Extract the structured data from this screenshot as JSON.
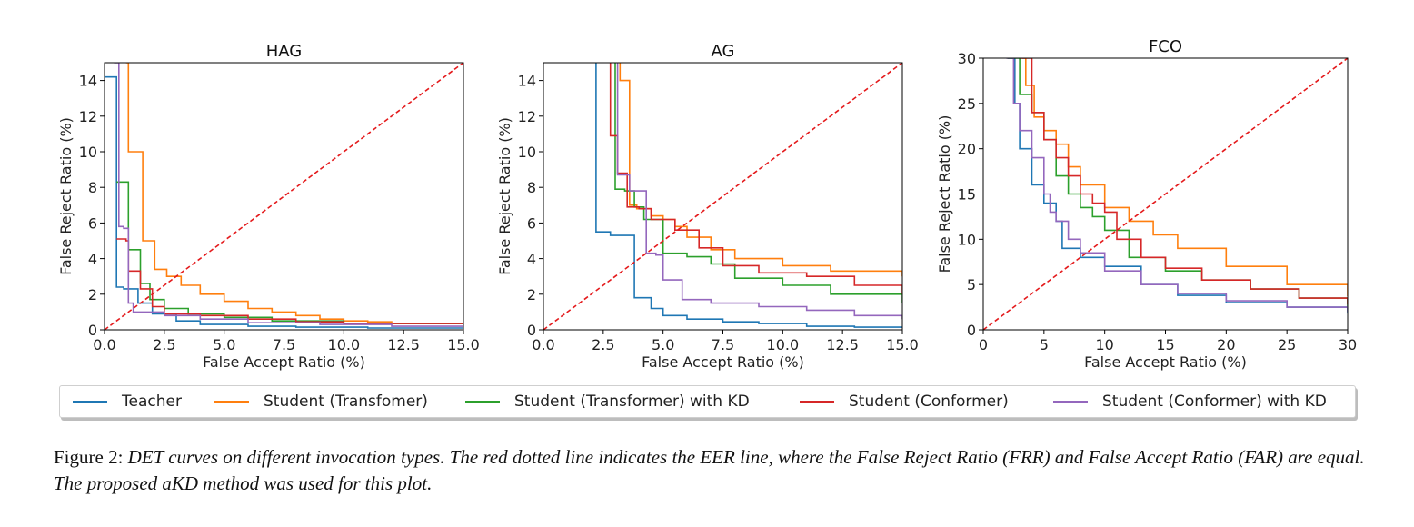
{
  "chart_data": [
    {
      "type": "line",
      "title": "HAG",
      "xlabel": "False Accept Ratio (%)",
      "ylabel": "False Reject Ratio (%)",
      "xlim": [
        0,
        15
      ],
      "ylim": [
        0,
        15
      ],
      "xticks": [
        "0.0",
        "2.5",
        "5.0",
        "7.5",
        "10.0",
        "12.5",
        "15.0"
      ],
      "yticks": [
        "0",
        "2",
        "4",
        "6",
        "8",
        "10",
        "12",
        "14"
      ],
      "xtick_values": [
        0,
        2.5,
        5,
        7.5,
        10,
        12.5,
        15
      ],
      "ytick_values": [
        0,
        2,
        4,
        6,
        8,
        10,
        12,
        14
      ],
      "eer_line": true,
      "series": [
        {
          "name": "Teacher",
          "x": [
            0,
            0.5,
            0.5,
            0.8,
            1.4,
            2.0,
            3.0,
            4.0,
            6.0,
            8.0,
            11.0,
            15.0
          ],
          "y": [
            14.2,
            14.2,
            2.4,
            2.3,
            1.5,
            0.9,
            0.5,
            0.3,
            0.2,
            0.15,
            0.1,
            0.05
          ]
        },
        {
          "name": "Student (Transfomer)",
          "x": [
            0.9,
            1.0,
            1.0,
            1.5,
            1.6,
            2.1,
            2.6,
            3.2,
            4.0,
            5.0,
            6.0,
            7.0,
            8.0,
            9.0,
            10.0,
            11.0,
            12.0,
            15.0
          ],
          "y": [
            15,
            15,
            10.0,
            10.0,
            5.0,
            3.4,
            3.0,
            2.5,
            2.0,
            1.6,
            1.2,
            1.0,
            0.8,
            0.6,
            0.5,
            0.45,
            0.35,
            0.25
          ]
        },
        {
          "name": "Student (Transformer) with KD",
          "x": [
            0.5,
            0.5,
            1.0,
            1.0,
            1.5,
            1.9,
            2.5,
            3.5,
            5.0,
            7.0,
            10.0,
            15.0
          ],
          "y": [
            8.3,
            8.3,
            8.3,
            4.5,
            2.6,
            1.7,
            1.2,
            0.9,
            0.7,
            0.5,
            0.35,
            0.25
          ]
        },
        {
          "name": "Student (Conformer)",
          "x": [
            0.5,
            0.5,
            0.9,
            1.0,
            1.5,
            2.0,
            2.5,
            4.0,
            6.0,
            8.0,
            10.0,
            15.0
          ],
          "y": [
            5.1,
            5.1,
            5.0,
            3.3,
            2.3,
            1.3,
            0.9,
            0.8,
            0.6,
            0.45,
            0.35,
            0.2
          ]
        },
        {
          "name": "Student (Conformer) with KD",
          "x": [
            0.4,
            0.6,
            0.6,
            0.8,
            1.0,
            1.2,
            2.5,
            4.0,
            6.0,
            9.0,
            12.0,
            15.0
          ],
          "y": [
            15,
            15,
            5.8,
            5.7,
            1.5,
            1.0,
            0.8,
            0.6,
            0.4,
            0.3,
            0.2,
            0.1
          ]
        }
      ]
    },
    {
      "type": "line",
      "title": "AG",
      "xlabel": "False Accept Ratio (%)",
      "ylabel": "False Reject Ratio (%)",
      "xlim": [
        0,
        15
      ],
      "ylim": [
        0,
        15
      ],
      "xticks": [
        "0.0",
        "2.5",
        "5.0",
        "7.5",
        "10.0",
        "12.5",
        "15.0"
      ],
      "yticks": [
        "0",
        "2",
        "4",
        "6",
        "8",
        "10",
        "12",
        "14"
      ],
      "xtick_values": [
        0,
        2.5,
        5,
        7.5,
        10,
        12.5,
        15
      ],
      "ytick_values": [
        0,
        2,
        4,
        6,
        8,
        10,
        12,
        14
      ],
      "eer_line": true,
      "series": [
        {
          "name": "Teacher",
          "x": [
            2.2,
            2.2,
            2.8,
            3.6,
            3.8,
            4.5,
            5.0,
            6.0,
            7.5,
            9.0,
            11.0,
            13.0,
            15.0
          ],
          "y": [
            15,
            5.5,
            5.3,
            5.3,
            1.8,
            1.2,
            0.8,
            0.6,
            0.45,
            0.35,
            0.2,
            0.15,
            0.1
          ]
        },
        {
          "name": "Student (Transfomer)",
          "x": [
            3.2,
            3.2,
            3.6,
            3.6,
            3.9,
            4.5,
            5.0,
            5.5,
            6.0,
            7.0,
            8.0,
            10.0,
            12.0,
            15.0
          ],
          "y": [
            15,
            14.0,
            14.0,
            7.0,
            6.8,
            6.4,
            6.2,
            5.8,
            5.2,
            4.5,
            4.0,
            3.6,
            3.3,
            3.0
          ]
        },
        {
          "name": "Student (Transformer) with KD",
          "x": [
            3.0,
            3.0,
            3.4,
            3.8,
            4.2,
            5.0,
            6.0,
            7.0,
            8.0,
            10.0,
            12.0,
            15.0
          ],
          "y": [
            15,
            7.9,
            7.8,
            6.9,
            6.2,
            4.3,
            4.1,
            3.7,
            2.9,
            2.5,
            2.0,
            1.5
          ]
        },
        {
          "name": "Student (Conformer)",
          "x": [
            2.8,
            2.8,
            3.1,
            3.1,
            3.5,
            4.0,
            4.5,
            5.5,
            6.5,
            7.5,
            9.0,
            11.0,
            13.0,
            15.0
          ],
          "y": [
            15,
            10.9,
            10.9,
            8.8,
            6.9,
            6.8,
            6.2,
            5.6,
            4.6,
            3.6,
            3.2,
            3.0,
            2.5,
            2.0
          ]
        },
        {
          "name": "Student (Conformer) with KD",
          "x": [
            3.1,
            3.1,
            3.6,
            4.2,
            4.3,
            4.7,
            5.0,
            5.8,
            7.0,
            9.0,
            11.0,
            13.0,
            15.0
          ],
          "y": [
            15,
            8.7,
            7.8,
            7.8,
            4.3,
            4.2,
            2.8,
            1.7,
            1.5,
            1.3,
            1.1,
            0.8,
            0.6
          ]
        }
      ]
    },
    {
      "type": "line",
      "title": "FCO",
      "xlabel": "False Accept Ratio (%)",
      "ylabel": "False Reject Ratio (%)",
      "xlim": [
        0,
        30
      ],
      "ylim": [
        0,
        30
      ],
      "xticks": [
        "0",
        "5",
        "10",
        "15",
        "20",
        "25",
        "30"
      ],
      "yticks": [
        "0",
        "5",
        "10",
        "15",
        "20",
        "25",
        "30"
      ],
      "xtick_values": [
        0,
        5,
        10,
        15,
        20,
        25,
        30
      ],
      "ytick_values": [
        0,
        5,
        10,
        15,
        20,
        25,
        30
      ],
      "eer_line": true,
      "series": [
        {
          "name": "Teacher",
          "x": [
            2.0,
            2.6,
            3.0,
            4.0,
            5.0,
            6.0,
            6.5,
            8.0,
            10.0,
            13.0,
            16.0,
            20.0,
            25.0,
            30.0
          ],
          "y": [
            30,
            25.0,
            20.0,
            16.0,
            14.0,
            12.0,
            9.0,
            8.0,
            7.0,
            5.0,
            3.8,
            3.0,
            2.5,
            1.8
          ]
        },
        {
          "name": "Student (Transfomer)",
          "x": [
            3.2,
            3.5,
            4.2,
            5.0,
            6.0,
            7.0,
            8.0,
            10.0,
            12.0,
            14.0,
            16.0,
            20.0,
            25.0,
            30.0
          ],
          "y": [
            30,
            27.0,
            23.5,
            22.0,
            20.5,
            18.0,
            16.0,
            13.5,
            12.0,
            10.5,
            9.0,
            7.0,
            5.0,
            3.7
          ]
        },
        {
          "name": "Student (Transformer) with KD",
          "x": [
            2.0,
            3.0,
            4.0,
            5.0,
            6.0,
            7.0,
            8.0,
            9.0,
            10.0,
            12.0,
            15.0,
            18.0,
            22.0,
            26.0,
            30.0
          ],
          "y": [
            30,
            26.0,
            24.0,
            21.0,
            17.0,
            15.0,
            13.5,
            12.5,
            11.0,
            8.0,
            6.5,
            5.5,
            4.5,
            3.5,
            2.5
          ]
        },
        {
          "name": "Student (Conformer)",
          "x": [
            3.0,
            4.0,
            5.0,
            6.0,
            7.0,
            8.0,
            9.0,
            10.0,
            11.0,
            13.0,
            15.0,
            18.0,
            22.0,
            26.0,
            30.0
          ],
          "y": [
            30,
            24.0,
            21.0,
            19.0,
            17.0,
            15.0,
            14.0,
            13.0,
            10.0,
            8.0,
            6.8,
            5.5,
            4.5,
            3.5,
            2.8
          ]
        },
        {
          "name": "Student (Conformer) with KD",
          "x": [
            1.9,
            2.5,
            3.0,
            4.0,
            5.0,
            5.5,
            6.0,
            7.0,
            8.0,
            10.0,
            13.0,
            16.0,
            20.0,
            25.0,
            30.0
          ],
          "y": [
            30,
            25.0,
            22.0,
            19.0,
            15.0,
            13.0,
            12.0,
            10.0,
            8.5,
            6.5,
            5.0,
            4.0,
            3.2,
            2.5,
            2.0
          ]
        }
      ]
    }
  ],
  "colors": [
    "#1f77b4",
    "#ff7f0e",
    "#2ca02c",
    "#d62728",
    "#9467bd"
  ],
  "eer_color": "#e41a1c",
  "legend": {
    "placement": "bottom",
    "items": [
      {
        "label": "Teacher",
        "color": "#1f77b4"
      },
      {
        "label": "Student (Transfomer)",
        "color": "#ff7f0e"
      },
      {
        "label": "Student (Transformer) with KD",
        "color": "#2ca02c"
      },
      {
        "label": "Student (Conformer)",
        "color": "#d62728"
      },
      {
        "label": "Student (Conformer) with KD",
        "color": "#9467bd"
      }
    ]
  },
  "caption": {
    "prefix": "Figure 2: ",
    "text": "DET curves on different invocation types. The red dotted line indicates the EER line, where the False Reject Ratio (FRR) and False Accept Ratio (FAR) are equal. The proposed aKD method was used for this plot."
  }
}
